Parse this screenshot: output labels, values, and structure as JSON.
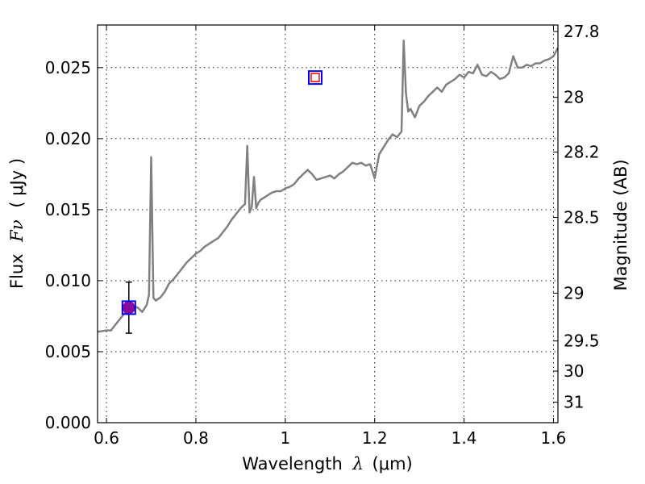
{
  "chart_data": {
    "type": "line",
    "xlabel_prefix": "Wavelength",
    "xlabel_symbol": "λ",
    "xlabel_unit": "(μm)",
    "ylabel_prefix": "Flux",
    "ylabel_symbol": "Fν",
    "ylabel_unit": "( μJy )",
    "y2label": "Magnitude (AB)",
    "xlim": [
      0.58,
      1.61
    ],
    "ylim": [
      0.0,
      0.028
    ],
    "grid": true,
    "x_ticks": [
      {
        "value": 0.6,
        "label": "0.6"
      },
      {
        "value": 0.8,
        "label": "0.8"
      },
      {
        "value": 1.0,
        "label": "1"
      },
      {
        "value": 1.2,
        "label": "1.2"
      },
      {
        "value": 1.4,
        "label": "1.4"
      },
      {
        "value": 1.6,
        "label": "1.6"
      }
    ],
    "y_ticks": [
      {
        "value": 0.0,
        "label": "0.000"
      },
      {
        "value": 0.005,
        "label": "0.005"
      },
      {
        "value": 0.01,
        "label": "0.010"
      },
      {
        "value": 0.015,
        "label": "0.015"
      },
      {
        "value": 0.02,
        "label": "0.020"
      },
      {
        "value": 0.025,
        "label": "0.025"
      }
    ],
    "y2_ticks": [
      {
        "value": 27.8,
        "label": "27.8"
      },
      {
        "value": 28.0,
        "label": "28"
      },
      {
        "value": 28.2,
        "label": "28.2"
      },
      {
        "value": 28.5,
        "label": "28.5"
      },
      {
        "value": 29.0,
        "label": "29"
      },
      {
        "value": 29.5,
        "label": "29.5"
      },
      {
        "value": 30.0,
        "label": "30"
      },
      {
        "value": 31.0,
        "label": "31"
      }
    ],
    "series": [
      {
        "kind": "spectrum",
        "color": "#808080",
        "x": [
          0.58,
          0.6,
          0.61,
          0.62,
          0.63,
          0.64,
          0.65,
          0.66,
          0.67,
          0.68,
          0.69,
          0.695,
          0.7,
          0.705,
          0.71,
          0.72,
          0.73,
          0.74,
          0.75,
          0.76,
          0.77,
          0.78,
          0.79,
          0.8,
          0.81,
          0.82,
          0.83,
          0.84,
          0.85,
          0.86,
          0.87,
          0.88,
          0.89,
          0.9,
          0.91,
          0.915,
          0.92,
          0.925,
          0.93,
          0.935,
          0.94,
          0.945,
          0.95,
          0.96,
          0.97,
          0.98,
          0.99,
          1.0,
          1.01,
          1.02,
          1.03,
          1.04,
          1.05,
          1.06,
          1.07,
          1.08,
          1.09,
          1.1,
          1.11,
          1.12,
          1.13,
          1.14,
          1.15,
          1.16,
          1.17,
          1.18,
          1.19,
          1.2,
          1.21,
          1.22,
          1.23,
          1.24,
          1.25,
          1.26,
          1.265,
          1.27,
          1.275,
          1.28,
          1.29,
          1.3,
          1.31,
          1.32,
          1.33,
          1.34,
          1.35,
          1.36,
          1.37,
          1.38,
          1.39,
          1.4,
          1.41,
          1.42,
          1.43,
          1.44,
          1.45,
          1.46,
          1.47,
          1.48,
          1.49,
          1.5,
          1.51,
          1.52,
          1.53,
          1.54,
          1.55,
          1.56,
          1.57,
          1.58,
          1.59,
          1.6,
          1.61
        ],
        "y": [
          0.0064,
          0.0065,
          0.0065,
          0.0069,
          0.0073,
          0.0077,
          0.0081,
          0.0082,
          0.0081,
          0.0078,
          0.0083,
          0.009,
          0.0187,
          0.0088,
          0.0086,
          0.0088,
          0.0092,
          0.0098,
          0.0101,
          0.0105,
          0.0109,
          0.0113,
          0.0116,
          0.0119,
          0.0121,
          0.0124,
          0.0126,
          0.0128,
          0.013,
          0.0134,
          0.0138,
          0.0143,
          0.0147,
          0.0151,
          0.0154,
          0.0195,
          0.0148,
          0.0152,
          0.0173,
          0.0151,
          0.0155,
          0.0157,
          0.0158,
          0.016,
          0.0162,
          0.0163,
          0.0163,
          0.0165,
          0.0166,
          0.0168,
          0.0172,
          0.0175,
          0.0178,
          0.0175,
          0.0171,
          0.0172,
          0.0173,
          0.0174,
          0.0172,
          0.0175,
          0.0177,
          0.018,
          0.0183,
          0.0182,
          0.0183,
          0.0181,
          0.0182,
          0.0172,
          0.0189,
          0.0194,
          0.0199,
          0.0203,
          0.0201,
          0.0205,
          0.0269,
          0.0232,
          0.0219,
          0.0221,
          0.0215,
          0.0223,
          0.0226,
          0.023,
          0.0233,
          0.0236,
          0.0233,
          0.0238,
          0.024,
          0.0242,
          0.0245,
          0.0243,
          0.0247,
          0.0246,
          0.0252,
          0.0245,
          0.0244,
          0.0247,
          0.0245,
          0.0242,
          0.0243,
          0.0246,
          0.0258,
          0.025,
          0.025,
          0.0252,
          0.0251,
          0.0253,
          0.0253,
          0.0255,
          0.0256,
          0.0258,
          0.0264
        ]
      }
    ],
    "points": [
      {
        "kind": "filled-circle",
        "x": 0.65,
        "y": 0.0081,
        "color": "#8b0a9e",
        "yerr_low": 0.0063,
        "yerr_high": 0.0099
      },
      {
        "kind": "open-square",
        "x": 0.65,
        "y": 0.0081,
        "color": "#0000ff"
      },
      {
        "kind": "open-square",
        "x": 1.067,
        "y": 0.0243,
        "color": "#0000ff"
      },
      {
        "kind": "small-open-square",
        "x": 1.067,
        "y": 0.0243,
        "color": "#ff0000"
      }
    ]
  }
}
